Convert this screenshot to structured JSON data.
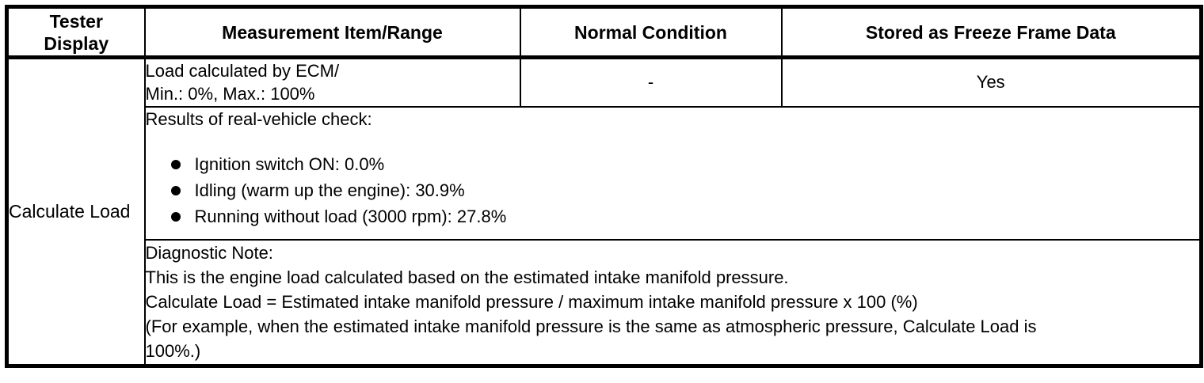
{
  "table": {
    "headers": {
      "tester_display": "Tester\nDisplay",
      "measurement_item_range": "Measurement Item/Range",
      "normal_condition": "Normal Condition",
      "freeze_frame": "Stored as Freeze Frame Data"
    },
    "tester_display_value": "Calculate Load",
    "measurement_row": {
      "lines": [
        "Load calculated by ECM/",
        "Min.: 0%, Max.: 100%"
      ],
      "normal_condition": "-",
      "freeze_frame": "Yes"
    },
    "results": {
      "intro": "Results of real-vehicle check:",
      "items": [
        "Ignition switch ON: 0.0%",
        "Idling (warm up the engine): 30.9%",
        "Running without load (3000 rpm): 27.8%"
      ]
    },
    "note": {
      "lines": [
        "Diagnostic Note:",
        "This is the engine load calculated based on the estimated intake manifold pressure.",
        "Calculate Load = Estimated intake manifold pressure / maximum intake manifold pressure x 100 (%)",
        "(For example, when the estimated intake manifold pressure is the same as atmospheric pressure, Calculate Load is",
        "100%.)"
      ]
    }
  },
  "colors": {
    "border": "#000000",
    "text": "#000000",
    "background": "#ffffff"
  }
}
